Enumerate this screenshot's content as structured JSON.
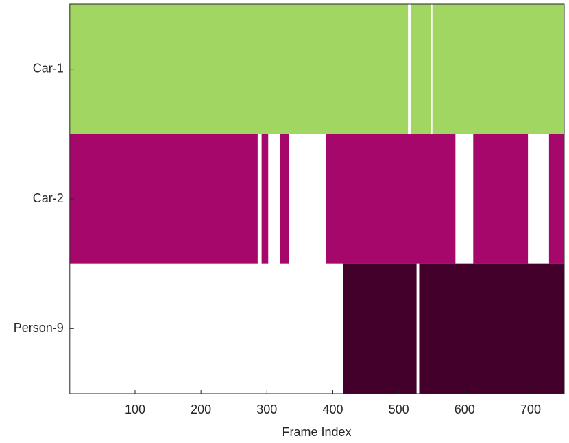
{
  "chart_data": {
    "type": "timeline",
    "xlabel": "Frame Index",
    "xlim": [
      1,
      751
    ],
    "xticks": [
      100,
      200,
      300,
      400,
      500,
      600,
      700
    ],
    "series": [
      {
        "name": "Car-1",
        "color": "#a2d662",
        "segments": [
          [
            1,
            514
          ],
          [
            518,
            549
          ],
          [
            551,
            751
          ]
        ]
      },
      {
        "name": "Car-2",
        "color": "#a5076a",
        "segments": [
          [
            1,
            286
          ],
          [
            292,
            302
          ],
          [
            320,
            334
          ],
          [
            390,
            586
          ],
          [
            613,
            696
          ],
          [
            728,
            751
          ]
        ]
      },
      {
        "name": "Person-9",
        "color": "#43002b",
        "segments": [
          [
            416,
            527
          ],
          [
            531,
            751
          ]
        ]
      }
    ]
  }
}
